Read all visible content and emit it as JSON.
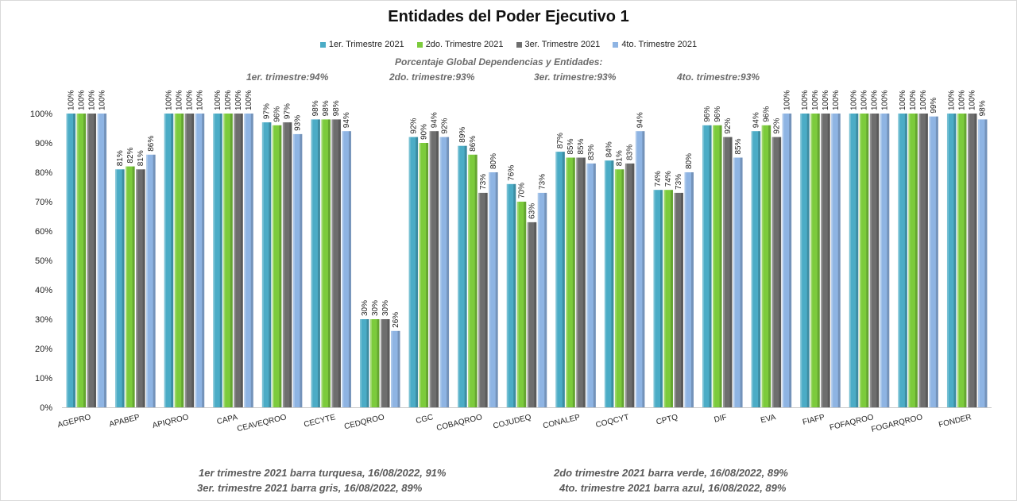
{
  "chart_data": {
    "type": "bar",
    "title": "Entidades del Poder Ejecutivo 1",
    "xlabel": "",
    "ylabel": "",
    "ylim": [
      0,
      100
    ],
    "yticks": [
      "0%",
      "10%",
      "20%",
      "30%",
      "40%",
      "50%",
      "60%",
      "70%",
      "80%",
      "90%",
      "100%"
    ],
    "grid": false,
    "legend_position": "top",
    "categories": [
      "AGEPRO",
      "APABEP",
      "APIQROO",
      "CAPA",
      "CEAVEQROO",
      "CECYTE",
      "CEDQROO",
      "CGC",
      "COBAQROO",
      "COJUDEQ",
      "CONALEP",
      "COQCYT",
      "CPTQ",
      "DIF",
      "EVA",
      "FIAFP",
      "FOFAQROO",
      "FOGARQROO",
      "FONDER"
    ],
    "series": [
      {
        "name": "1er. Trimestre 2021",
        "color": "#4bacc6",
        "values": [
          100,
          81,
          100,
          100,
          97,
          98,
          30,
          92,
          89,
          76,
          87,
          84,
          74,
          96,
          94,
          100,
          100,
          100,
          100
        ]
      },
      {
        "name": "2do. Trimestre 2021",
        "color": "#7ccb3c",
        "values": [
          100,
          82,
          100,
          100,
          96,
          98,
          30,
          90,
          86,
          70,
          85,
          81,
          74,
          96,
          96,
          100,
          100,
          100,
          100
        ]
      },
      {
        "name": "3er. Trimestre 2021",
        "color": "#6e6e6e",
        "values": [
          100,
          81,
          100,
          100,
          97,
          98,
          30,
          94,
          73,
          63,
          85,
          83,
          73,
          92,
          92,
          100,
          100,
          100,
          100
        ]
      },
      {
        "name": "4to. Trimestre 2021",
        "color": "#8eb4e3",
        "values": [
          100,
          86,
          100,
          100,
          93,
          94,
          26,
          92,
          80,
          73,
          83,
          94,
          80,
          85,
          100,
          100,
          100,
          99,
          98
        ]
      }
    ]
  },
  "notes": {
    "global_header": "Porcentaje Global  Dependencias y Entidades:",
    "q1": "1er. trimestre:94%",
    "q2": "2do. trimestre:93%",
    "q3": "3er. trimestre:93%",
    "q4": "4to. trimestre:93%"
  },
  "footer": {
    "line1_left": "1er trimestre  2021 barra turquesa,  16/08/2022, 91%",
    "line1_right": "2do trimestre  2021 barra verde, 16/08/2022, 89%",
    "line2_left": "3er. trimestre 2021 barra gris, 16/08/2022, 89%",
    "line2_right": "4to. trimestre 2021 barra azul, 16/08/2022, 89%"
  }
}
